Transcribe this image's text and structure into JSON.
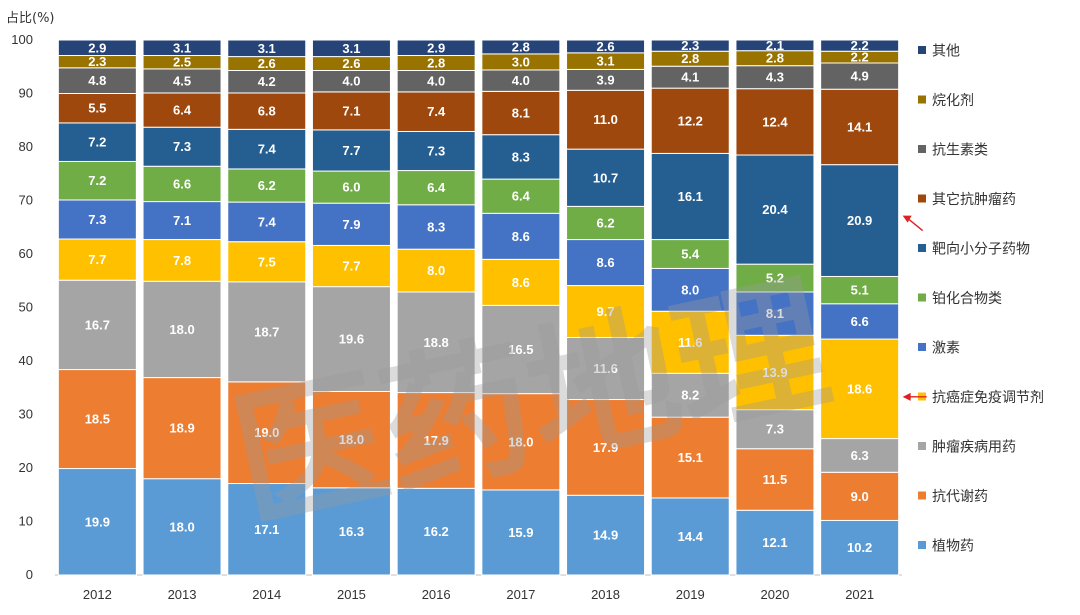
{
  "chart_data": {
    "type": "bar",
    "stacked": true,
    "ylabel": "占比(%)",
    "ylim": [
      0,
      100
    ],
    "yticks": [
      0,
      10,
      20,
      30,
      40,
      50,
      60,
      70,
      80,
      90,
      100
    ],
    "categories": [
      "2012",
      "2013",
      "2014",
      "2015",
      "2016",
      "2017",
      "2018",
      "2019",
      "2020",
      "2021"
    ],
    "series": [
      {
        "name": "植物药",
        "color": "#5B9BD5",
        "label_color": "#ffffff",
        "values": [
          19.9,
          18.0,
          17.1,
          16.3,
          16.2,
          15.9,
          14.9,
          14.4,
          12.1,
          10.2
        ]
      },
      {
        "name": "抗代谢药",
        "color": "#ED7D31",
        "label_color": "#ffffff",
        "values": [
          18.5,
          18.9,
          19.0,
          18.0,
          17.9,
          18.0,
          17.9,
          15.1,
          11.5,
          9.0
        ]
      },
      {
        "name": "肿瘤疾病用药",
        "color": "#A5A5A5",
        "label_color": "#ffffff",
        "values": [
          16.7,
          18.0,
          18.7,
          19.6,
          18.8,
          16.5,
          11.6,
          8.2,
          7.3,
          6.3
        ]
      },
      {
        "name": "抗癌症免疫调节剂",
        "color": "#FFC000",
        "label_color": "#ffffff",
        "values": [
          7.7,
          7.8,
          7.5,
          7.7,
          8.0,
          8.6,
          9.7,
          11.6,
          13.9,
          18.6
        ]
      },
      {
        "name": "激素",
        "color": "#4472C4",
        "label_color": "#ffffff",
        "values": [
          7.3,
          7.1,
          7.4,
          7.9,
          8.3,
          8.6,
          8.6,
          8.0,
          8.1,
          6.6
        ]
      },
      {
        "name": "铂化合物类",
        "color": "#70AD47",
        "label_color": "#ffffff",
        "values": [
          7.2,
          6.6,
          6.2,
          6.0,
          6.4,
          6.4,
          6.2,
          5.4,
          5.2,
          5.1
        ]
      },
      {
        "name": "靶向小分子药物",
        "color": "#255E91",
        "label_color": "#ffffff",
        "values": [
          7.2,
          7.3,
          7.4,
          7.7,
          7.3,
          8.3,
          10.7,
          16.1,
          20.4,
          20.9
        ]
      },
      {
        "name": "其它抗肿瘤药",
        "color": "#9E480E",
        "label_color": "#ffffff",
        "values": [
          5.5,
          6.4,
          6.8,
          7.1,
          7.4,
          8.1,
          11.0,
          12.2,
          12.4,
          14.1
        ]
      },
      {
        "name": "抗生素类",
        "color": "#636363",
        "label_color": "#ffffff",
        "values": [
          4.8,
          4.5,
          4.2,
          4.0,
          4.0,
          4.0,
          3.9,
          4.1,
          4.3,
          4.9
        ]
      },
      {
        "name": "烷化剂",
        "color": "#997300",
        "label_color": "#ffffff",
        "values": [
          2.3,
          2.5,
          2.6,
          2.6,
          2.8,
          3.0,
          3.1,
          2.8,
          2.8,
          2.2
        ]
      },
      {
        "name": "其他",
        "color": "#264478",
        "label_color": "#ffffff",
        "values": [
          2.9,
          3.1,
          3.1,
          3.1,
          2.9,
          2.8,
          2.6,
          2.3,
          2.1,
          2.2
        ]
      }
    ],
    "legend_position": "right",
    "legend_order_top_to_bottom": [
      "其他",
      "烷化剂",
      "抗生素类",
      "其它抗肿瘤药",
      "靶向小分子药物",
      "铂化合物类",
      "激素",
      "抗癌症免疫调节剂",
      "肿瘤疾病用药",
      "抗代谢药",
      "植物药"
    ],
    "annotations": [
      {
        "type": "arrow",
        "target_series": "靶向小分子药物",
        "color": "#E02020"
      },
      {
        "type": "arrow",
        "target_series": "抗癌症免疫调节剂",
        "color": "#E02020"
      }
    ],
    "watermark": "医药地理"
  }
}
